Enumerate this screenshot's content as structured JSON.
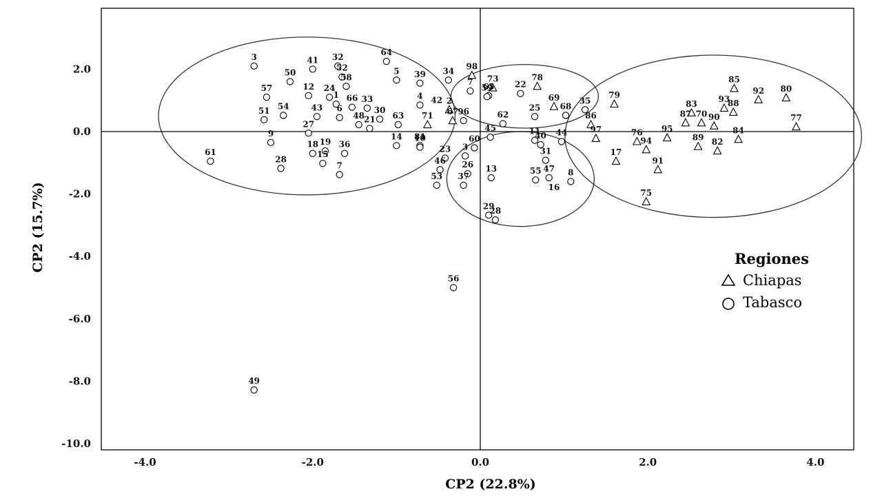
{
  "chart_data": {
    "type": "scatter",
    "xlabel": "CP2 (22.8%)",
    "ylabel": "CP2 (15.7%)",
    "xlim": [
      -4.6,
      4.6
    ],
    "ylim": [
      -10.4,
      3.95
    ],
    "x_ticks": [
      -4.0,
      -2.0,
      0.0,
      2.0,
      4.0
    ],
    "x_tick_labels": [
      "-4.0",
      "-2.0",
      "0.0",
      "2.0",
      "4.0"
    ],
    "y_ticks": [
      2.0,
      0.0,
      -2.0,
      -4.0,
      -6.0,
      -8.0,
      -10.0
    ],
    "y_tick_labels": [
      "2.0",
      "0.0",
      "-2.0",
      "-4.0",
      "-6.0",
      "-8.0",
      "-10.0"
    ],
    "grid": false,
    "reference_lines": {
      "x": 0.0,
      "y": 0.0
    },
    "legend": {
      "title": "Regiones",
      "placement": "right",
      "entries": [
        {
          "label": "Chiapas",
          "marker": "triangle"
        },
        {
          "label": "Tabasco",
          "marker": "circle"
        }
      ]
    },
    "series": [
      {
        "name": "Chiapas",
        "marker": "triangle",
        "points": [
          {
            "label": "98",
            "x": -0.1,
            "y": 1.8
          },
          {
            "label": "73",
            "x": 0.15,
            "y": 1.4
          },
          {
            "label": "78",
            "x": 0.68,
            "y": 1.45
          },
          {
            "label": "69",
            "x": 0.88,
            "y": 0.8
          },
          {
            "label": "2",
            "x": -0.37,
            "y": 0.7
          },
          {
            "label": "67",
            "x": -0.33,
            "y": 0.35
          },
          {
            "label": "71",
            "x": -0.63,
            "y": 0.22
          },
          {
            "label": "79",
            "x": 1.6,
            "y": 0.88
          },
          {
            "label": "86",
            "x": 1.32,
            "y": 0.22
          },
          {
            "label": "97",
            "x": 1.38,
            "y": -0.22
          },
          {
            "label": "17",
            "x": 1.62,
            "y": -0.95
          },
          {
            "label": "76",
            "x": 1.87,
            "y": -0.32
          },
          {
            "label": "94",
            "x": 1.98,
            "y": -0.58
          },
          {
            "label": "91",
            "x": 2.12,
            "y": -1.22
          },
          {
            "label": "75",
            "x": 1.98,
            "y": -2.25
          },
          {
            "label": "95",
            "x": 2.23,
            "y": -0.2
          },
          {
            "label": "83",
            "x": 2.52,
            "y": 0.6
          },
          {
            "label": "87",
            "x": 2.45,
            "y": 0.28
          },
          {
            "label": "70",
            "x": 2.64,
            "y": 0.28
          },
          {
            "label": "89",
            "x": 2.6,
            "y": -0.48
          },
          {
            "label": "82",
            "x": 2.83,
            "y": -0.62
          },
          {
            "label": "93",
            "x": 2.91,
            "y": 0.75
          },
          {
            "label": "90",
            "x": 2.79,
            "y": 0.18
          },
          {
            "label": "85",
            "x": 3.03,
            "y": 1.38
          },
          {
            "label": "88",
            "x": 3.02,
            "y": 0.62
          },
          {
            "label": "84",
            "x": 3.08,
            "y": -0.25
          },
          {
            "label": "92",
            "x": 3.32,
            "y": 1.02
          },
          {
            "label": "80",
            "x": 3.65,
            "y": 1.08
          },
          {
            "label": "77",
            "x": 3.77,
            "y": 0.15
          }
        ]
      },
      {
        "name": "Tabasco",
        "marker": "circle",
        "points": [
          {
            "label": "3",
            "x": -2.7,
            "y": 2.1
          },
          {
            "label": "41",
            "x": -2.0,
            "y": 2.0
          },
          {
            "label": "32",
            "x": -1.7,
            "y": 2.1
          },
          {
            "label": "64",
            "x": -1.12,
            "y": 2.25
          },
          {
            "label": "50",
            "x": -2.27,
            "y": 1.6
          },
          {
            "label": "52",
            "x": -1.65,
            "y": 1.75
          },
          {
            "label": "5",
            "x": -1.0,
            "y": 1.65
          },
          {
            "label": "39",
            "x": -0.72,
            "y": 1.55
          },
          {
            "label": "57",
            "x": -2.55,
            "y": 1.1
          },
          {
            "label": "12",
            "x": -2.05,
            "y": 1.15
          },
          {
            "label": "24",
            "x": -1.8,
            "y": 1.1
          },
          {
            "label": "58",
            "x": -1.6,
            "y": 1.45
          },
          {
            "label": "1",
            "x": -1.72,
            "y": 0.88
          },
          {
            "label": "66",
            "x": -1.53,
            "y": 0.78
          },
          {
            "label": "33",
            "x": -1.35,
            "y": 0.75
          },
          {
            "label": "51",
            "x": -2.58,
            "y": 0.38
          },
          {
            "label": "54",
            "x": -2.35,
            "y": 0.52
          },
          {
            "label": "43",
            "x": -1.95,
            "y": 0.48
          },
          {
            "label": "6",
            "x": -1.68,
            "y": 0.45
          },
          {
            "label": "30",
            "x": -1.2,
            "y": 0.4
          },
          {
            "label": "63",
            "x": -0.98,
            "y": 0.22
          },
          {
            "label": "4",
            "x": -0.72,
            "y": 0.85
          },
          {
            "label": "27",
            "x": -2.05,
            "y": -0.05
          },
          {
            "label": "48",
            "x": -1.45,
            "y": 0.22
          },
          {
            "label": "9",
            "x": -2.5,
            "y": -0.35
          },
          {
            "label": "21",
            "x": -1.32,
            "y": 0.1
          },
          {
            "label": "14",
            "x": -1.0,
            "y": -0.45
          },
          {
            "label": "81",
            "x": -0.72,
            "y": -0.45
          },
          {
            "label": "61",
            "x": -3.22,
            "y": -0.95
          },
          {
            "label": "28",
            "x": -2.38,
            "y": -1.18
          },
          {
            "label": "18",
            "x": -2.0,
            "y": -0.7
          },
          {
            "label": "19",
            "x": -1.85,
            "y": -0.62
          },
          {
            "label": "36",
            "x": -1.62,
            "y": -0.7
          },
          {
            "label": "15",
            "x": -1.88,
            "y": -1.02
          },
          {
            "label": "7",
            "x": -1.68,
            "y": -1.38
          },
          {
            "label": "34",
            "x": -0.38,
            "y": 1.65
          },
          {
            "label": "7",
            "x": -0.12,
            "y": 1.3
          },
          {
            "label": "65",
            "x": 0.1,
            "y": 1.15
          },
          {
            "label": "59",
            "x": 0.08,
            "y": 1.12
          },
          {
            "label": "22",
            "x": 0.48,
            "y": 1.22
          },
          {
            "label": "25",
            "x": 0.65,
            "y": 0.48
          },
          {
            "label": "68",
            "x": 1.02,
            "y": 0.52
          },
          {
            "label": "35",
            "x": 1.25,
            "y": 0.7
          },
          {
            "label": "62",
            "x": 0.27,
            "y": 0.25
          },
          {
            "label": "96",
            "x": -0.2,
            "y": 0.35
          },
          {
            "label": "10",
            "x": -0.72,
            "y": -0.5
          },
          {
            "label": "60",
            "x": -0.07,
            "y": -0.52
          },
          {
            "label": "23",
            "x": -0.42,
            "y": -0.85
          },
          {
            "label": "3",
            "x": -0.18,
            "y": -0.78
          },
          {
            "label": "45",
            "x": 0.12,
            "y": -0.18
          },
          {
            "label": "11",
            "x": 0.65,
            "y": -0.28
          },
          {
            "label": "40",
            "x": 0.72,
            "y": -0.42
          },
          {
            "label": "44",
            "x": 0.97,
            "y": -0.32
          },
          {
            "label": "31",
            "x": 0.78,
            "y": -0.92
          },
          {
            "label": "46",
            "x": -0.48,
            "y": -1.22
          },
          {
            "label": "26",
            "x": -0.15,
            "y": -1.35
          },
          {
            "label": "13",
            "x": 0.13,
            "y": -1.48
          },
          {
            "label": "55",
            "x": 0.66,
            "y": -1.55
          },
          {
            "label": "47",
            "x": 0.82,
            "y": -1.48
          },
          {
            "label": "8",
            "x": 1.08,
            "y": -1.6
          },
          {
            "label": "53",
            "x": -0.52,
            "y": -1.72
          },
          {
            "label": "37",
            "x": -0.2,
            "y": -1.72
          },
          {
            "label": "29",
            "x": 0.1,
            "y": -2.68
          },
          {
            "label": "28",
            "x": 0.18,
            "y": -2.83
          },
          {
            "label": "56",
            "x": -0.32,
            "y": -5.0
          },
          {
            "label": "49",
            "x": -2.7,
            "y": -8.28
          }
        ]
      }
    ],
    "extra_labels": [
      {
        "text": "42",
        "x": -0.52,
        "y": 0.92
      },
      {
        "text": "16",
        "x": 0.88,
        "y": -1.88
      }
    ],
    "ellipses": [
      {
        "cx": -2.07,
        "cy": 0.5,
        "rx": 1.77,
        "ry": 2.53
      },
      {
        "cx": 0.53,
        "cy": 1.13,
        "rx": 0.88,
        "ry": 1.02
      },
      {
        "cx": 0.48,
        "cy": -1.52,
        "rx": 0.88,
        "ry": 1.52
      },
      {
        "cx": 2.78,
        "cy": -0.15,
        "rx": 1.77,
        "ry": 2.6
      }
    ]
  }
}
